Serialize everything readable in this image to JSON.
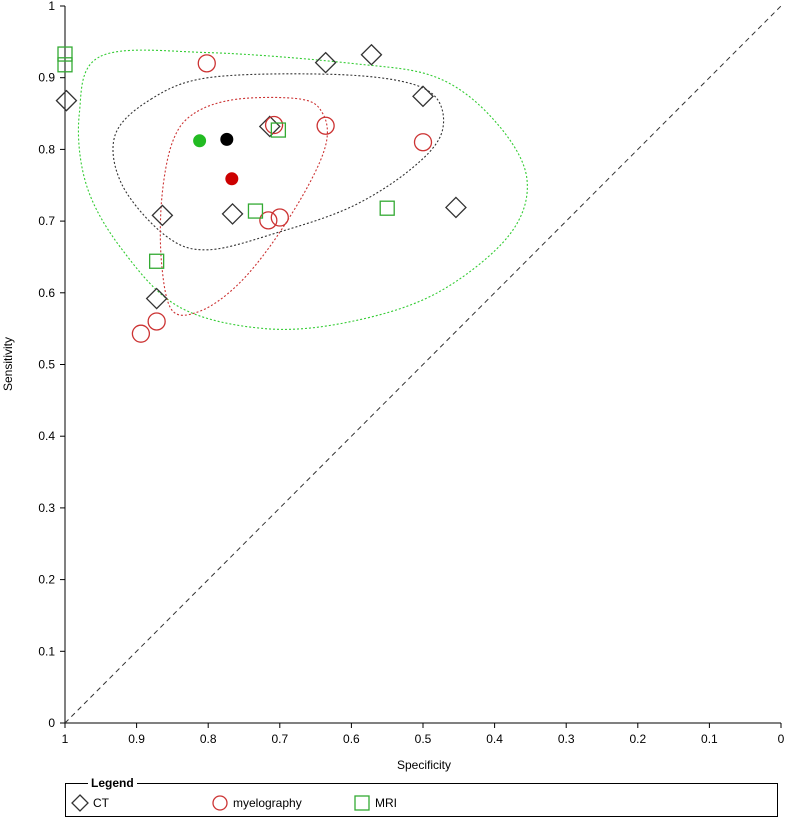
{
  "chart_data": {
    "type": "scatter",
    "xlabel": "Specificity",
    "ylabel": "Sensitivity",
    "xlim": [
      1,
      0
    ],
    "ylim": [
      0,
      1
    ],
    "x_ticks": [
      "1",
      "0.9",
      "0.8",
      "0.7",
      "0.6",
      "0.5",
      "0.4",
      "0.3",
      "0.2",
      "0.1",
      "0"
    ],
    "y_ticks": [
      "0",
      "0.1",
      "0.2",
      "0.3",
      "0.4",
      "0.5",
      "0.6",
      "0.7",
      "0.8",
      "0.9",
      "1"
    ],
    "diagonal": "dashed",
    "legend_title": "Legend",
    "legend_position": "bottom",
    "series": [
      {
        "name": "CT",
        "marker": "diamond",
        "color": "#333333",
        "points": [
          {
            "spec": 0.998,
            "sens": 0.868
          },
          {
            "spec": 0.636,
            "sens": 0.921
          },
          {
            "spec": 0.572,
            "sens": 0.932
          },
          {
            "spec": 0.5,
            "sens": 0.874
          },
          {
            "spec": 0.714,
            "sens": 0.832
          },
          {
            "spec": 0.864,
            "sens": 0.708
          },
          {
            "spec": 0.766,
            "sens": 0.71
          },
          {
            "spec": 0.454,
            "sens": 0.719
          },
          {
            "spec": 0.872,
            "sens": 0.592
          }
        ],
        "summary": {
          "spec": 0.774,
          "sens": 0.814
        },
        "summary_color": "#000000"
      },
      {
        "name": "myelography",
        "marker": "circle",
        "color": "#cc3333",
        "points": [
          {
            "spec": 0.802,
            "sens": 0.92
          },
          {
            "spec": 0.708,
            "sens": 0.834
          },
          {
            "spec": 0.636,
            "sens": 0.833
          },
          {
            "spec": 0.5,
            "sens": 0.81
          },
          {
            "spec": 0.716,
            "sens": 0.701
          },
          {
            "spec": 0.7,
            "sens": 0.705
          },
          {
            "spec": 0.872,
            "sens": 0.56
          },
          {
            "spec": 0.894,
            "sens": 0.543
          }
        ],
        "summary": {
          "spec": 0.767,
          "sens": 0.759
        },
        "summary_color": "#cc0000"
      },
      {
        "name": "MRI",
        "marker": "square",
        "color": "#33aa33",
        "points": [
          {
            "spec": 1.0,
            "sens": 0.933
          },
          {
            "spec": 1.0,
            "sens": 0.918
          },
          {
            "spec": 0.702,
            "sens": 0.827
          },
          {
            "spec": 0.734,
            "sens": 0.714
          },
          {
            "spec": 0.55,
            "sens": 0.718
          },
          {
            "spec": 0.872,
            "sens": 0.644
          }
        ],
        "summary": {
          "spec": 0.812,
          "sens": 0.812
        },
        "summary_color": "#22bb22"
      }
    ],
    "confidence_regions": [
      {
        "series": "MRI",
        "color": "#33cc33",
        "path": [
          [
            0.95,
            0.93
          ],
          [
            0.8,
            0.935
          ],
          [
            0.6,
            0.92
          ],
          [
            0.48,
            0.9
          ],
          [
            0.4,
            0.84
          ],
          [
            0.355,
            0.76
          ],
          [
            0.38,
            0.68
          ],
          [
            0.48,
            0.6
          ],
          [
            0.6,
            0.56
          ],
          [
            0.72,
            0.55
          ],
          [
            0.84,
            0.58
          ],
          [
            0.92,
            0.66
          ],
          [
            0.97,
            0.75
          ],
          [
            0.98,
            0.85
          ]
        ]
      },
      {
        "series": "CT",
        "color": "#333333",
        "path": [
          [
            0.88,
            0.87
          ],
          [
            0.8,
            0.9
          ],
          [
            0.64,
            0.905
          ],
          [
            0.53,
            0.895
          ],
          [
            0.48,
            0.87
          ],
          [
            0.475,
            0.82
          ],
          [
            0.52,
            0.77
          ],
          [
            0.6,
            0.72
          ],
          [
            0.7,
            0.685
          ],
          [
            0.8,
            0.66
          ],
          [
            0.86,
            0.68
          ],
          [
            0.92,
            0.75
          ],
          [
            0.93,
            0.82
          ]
        ]
      },
      {
        "series": "myelography",
        "color": "#cc3333",
        "path": [
          [
            0.82,
            0.85
          ],
          [
            0.76,
            0.87
          ],
          [
            0.67,
            0.87
          ],
          [
            0.64,
            0.85
          ],
          [
            0.635,
            0.81
          ],
          [
            0.66,
            0.75
          ],
          [
            0.71,
            0.67
          ],
          [
            0.76,
            0.61
          ],
          [
            0.81,
            0.575
          ],
          [
            0.85,
            0.575
          ],
          [
            0.865,
            0.64
          ],
          [
            0.865,
            0.73
          ],
          [
            0.85,
            0.81
          ]
        ]
      }
    ]
  }
}
